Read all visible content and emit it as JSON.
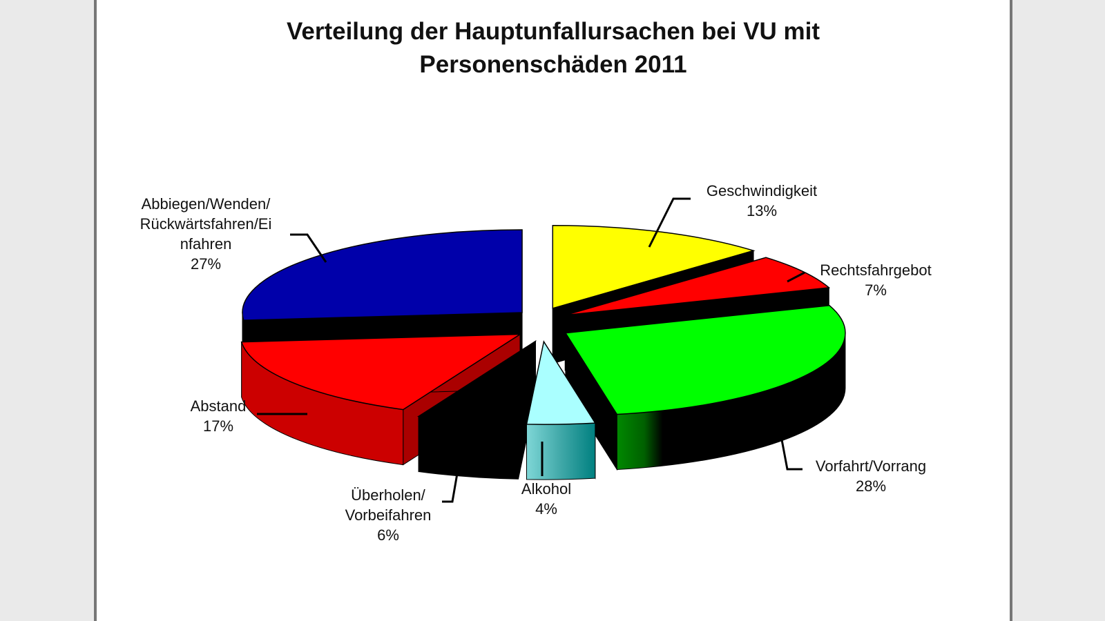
{
  "chart_data": {
    "type": "pie",
    "title": "Verteilung der Hauptunfallursachen bei VU mit Personenschäden 2011",
    "title_lines": [
      "Verteilung der Hauptunfallursachen bei VU mit",
      "Personenschäden 2011"
    ],
    "three_d": true,
    "exploded": true,
    "slices": [
      {
        "label_lines": [
          "Geschwindigkeit"
        ],
        "pct_label": "13%",
        "value": 13,
        "color": "#ffff00"
      },
      {
        "label_lines": [
          "Rechtsfahrgebot"
        ],
        "pct_label": "7%",
        "value": 7,
        "color": "#ff0000"
      },
      {
        "label_lines": [
          "Vorfahrt/Vorrang"
        ],
        "pct_label": "28%",
        "value": 28,
        "color": "#00ff00"
      },
      {
        "label_lines": [
          "Alkohol"
        ],
        "pct_label": "4%",
        "value": 4,
        "color": "#aaffff"
      },
      {
        "label_lines": [
          "Überholen/",
          "Vorbeifahren"
        ],
        "pct_label": "6%",
        "value": 6,
        "color": "#000000"
      },
      {
        "label_lines": [
          "Abstand"
        ],
        "pct_label": "17%",
        "value": 17,
        "color": "#ff0000"
      },
      {
        "label_lines": [
          "Abbiegen/Wenden/",
          "Rückwärtsfahren/Ei",
          "nfahren"
        ],
        "pct_label": "27%",
        "value": 27,
        "color": "#0000aa"
      }
    ]
  }
}
